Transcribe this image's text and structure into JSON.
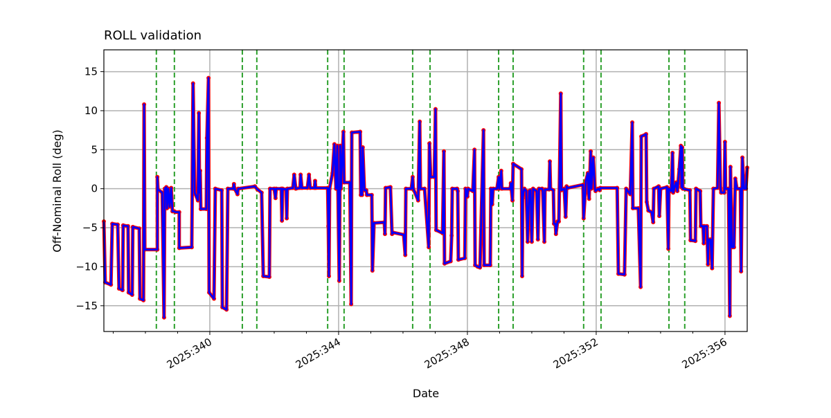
{
  "chart_data": {
    "type": "line",
    "title": "ROLL validation",
    "xlabel": "Date",
    "ylabel": "Off-Nominal Roll (deg)",
    "xlim": [
      336.71,
      356.69
    ],
    "ylim": [
      -18.3,
      17.8
    ],
    "x_major_ticks": [
      340,
      344,
      348,
      352,
      356
    ],
    "x_tick_labels": [
      "2025:340",
      "2025:344",
      "2025:348",
      "2025:352",
      "2025:356"
    ],
    "x_minor_step": 1,
    "y_ticks": [
      -15,
      -10,
      -5,
      0,
      5,
      10,
      15
    ],
    "y_tick_labels": [
      "−15",
      "−10",
      "−5",
      "0",
      "5",
      "10",
      "15"
    ],
    "grid": true,
    "colors": {
      "series_a": "#ff0000",
      "series_b": "#0000ff",
      "markers": "#2ca02c",
      "grid": "#b0b0b0"
    },
    "vertical_markers": [
      338.34,
      338.9,
      341.01,
      341.46,
      343.66,
      344.17,
      346.3,
      346.84,
      348.97,
      349.42,
      351.61,
      352.15,
      354.26,
      354.75
    ],
    "points": [
      [
        336.71,
        -4.2
      ],
      [
        336.75,
        -12
      ],
      [
        336.93,
        -12.3
      ],
      [
        336.97,
        -4.5
      ],
      [
        337.14,
        -4.6
      ],
      [
        337.18,
        -12.8
      ],
      [
        337.29,
        -13
      ],
      [
        337.31,
        -4.7
      ],
      [
        337.46,
        -4.8
      ],
      [
        337.48,
        -13.3
      ],
      [
        337.59,
        -13.6
      ],
      [
        337.61,
        -4.9
      ],
      [
        337.81,
        -5.1
      ],
      [
        337.83,
        -14.1
      ],
      [
        337.94,
        -14.3
      ],
      [
        337.96,
        10.8
      ],
      [
        337.98,
        -7.8
      ],
      [
        338.37,
        -7.8
      ],
      [
        338.37,
        1.5
      ],
      [
        338.39,
        -0.1
      ],
      [
        338.52,
        -0.5
      ],
      [
        338.58,
        -16.5
      ],
      [
        338.6,
        0
      ],
      [
        338.65,
        0.2
      ],
      [
        338.67,
        -2.5
      ],
      [
        338.71,
        0
      ],
      [
        338.75,
        -2.3
      ],
      [
        338.8,
        0.1
      ],
      [
        338.84,
        -2.9
      ],
      [
        338.9,
        -2.9
      ],
      [
        338.93,
        -3
      ],
      [
        339.05,
        -3
      ],
      [
        339.05,
        -7.6
      ],
      [
        339.44,
        -7.5
      ],
      [
        339.48,
        13.5
      ],
      [
        339.53,
        -0.5
      ],
      [
        339.63,
        -1.5
      ],
      [
        339.66,
        9.7
      ],
      [
        339.68,
        -0.5
      ],
      [
        339.7,
        2.3
      ],
      [
        339.72,
        -2.6
      ],
      [
        339.89,
        -2.6
      ],
      [
        339.91,
        6.5
      ],
      [
        339.96,
        14.2
      ],
      [
        339.98,
        -13.3
      ],
      [
        340.13,
        -14.1
      ],
      [
        340.17,
        0
      ],
      [
        340.37,
        -0.2
      ],
      [
        340.39,
        -15.2
      ],
      [
        340.52,
        -15.5
      ],
      [
        340.56,
        0
      ],
      [
        340.73,
        0
      ],
      [
        340.75,
        0.6
      ],
      [
        340.77,
        0
      ],
      [
        340.86,
        -0.7
      ],
      [
        340.88,
        0
      ],
      [
        341.4,
        0.3
      ],
      [
        341.48,
        -0.1
      ],
      [
        341.61,
        -0.5
      ],
      [
        341.66,
        -11.2
      ],
      [
        341.85,
        -11.3
      ],
      [
        341.87,
        0
      ],
      [
        342.0,
        0
      ],
      [
        342.04,
        -1.2
      ],
      [
        342.06,
        0
      ],
      [
        342.22,
        0
      ],
      [
        342.24,
        -4.1
      ],
      [
        342.26,
        0
      ],
      [
        342.37,
        -0.1
      ],
      [
        342.39,
        -3.8
      ],
      [
        342.41,
        0
      ],
      [
        342.58,
        0.1
      ],
      [
        342.62,
        1.8
      ],
      [
        342.67,
        0
      ],
      [
        342.8,
        0.1
      ],
      [
        342.82,
        1.8
      ],
      [
        342.86,
        0.1
      ],
      [
        343.03,
        0.1
      ],
      [
        343.08,
        1.8
      ],
      [
        343.12,
        0.1
      ],
      [
        343.25,
        0.1
      ],
      [
        343.27,
        1
      ],
      [
        343.29,
        0.1
      ],
      [
        343.66,
        0.1
      ],
      [
        343.68,
        -4.8
      ],
      [
        343.7,
        -11.2
      ],
      [
        343.72,
        0
      ],
      [
        343.81,
        2
      ],
      [
        343.87,
        5.7
      ],
      [
        343.92,
        0
      ],
      [
        343.96,
        5.5
      ],
      [
        344.02,
        -11.8
      ],
      [
        344.05,
        5.5
      ],
      [
        344.07,
        0
      ],
      [
        344.15,
        7.3
      ],
      [
        344.17,
        0.8
      ],
      [
        344.35,
        0.8
      ],
      [
        344.39,
        -14.8
      ],
      [
        344.41,
        7.2
      ],
      [
        344.67,
        7.3
      ],
      [
        344.69,
        -0.8
      ],
      [
        344.73,
        -0.8
      ],
      [
        344.75,
        5.3
      ],
      [
        344.8,
        -0.2
      ],
      [
        344.86,
        -0.2
      ],
      [
        344.88,
        -0.8
      ],
      [
        345.03,
        -0.8
      ],
      [
        345.05,
        -10.5
      ],
      [
        345.1,
        -4.4
      ],
      [
        345.42,
        -4.3
      ],
      [
        345.44,
        -5.8
      ],
      [
        345.46,
        0.1
      ],
      [
        345.61,
        0.2
      ],
      [
        345.66,
        -5.8
      ],
      [
        345.68,
        -5.6
      ],
      [
        346.02,
        -5.9
      ],
      [
        346.07,
        -8.5
      ],
      [
        346.09,
        0
      ],
      [
        346.26,
        0
      ],
      [
        346.3,
        1.5
      ],
      [
        346.32,
        0
      ],
      [
        346.47,
        -1.5
      ],
      [
        346.52,
        8.6
      ],
      [
        346.54,
        0
      ],
      [
        346.67,
        0
      ],
      [
        346.8,
        -7.5
      ],
      [
        346.82,
        5.8
      ],
      [
        346.86,
        1.5
      ],
      [
        346.97,
        1.5
      ],
      [
        347.01,
        10.2
      ],
      [
        347.03,
        -5.3
      ],
      [
        347.23,
        -5.7
      ],
      [
        347.27,
        4.8
      ],
      [
        347.29,
        -9.6
      ],
      [
        347.48,
        -9.3
      ],
      [
        347.51,
        -6
      ],
      [
        347.53,
        0
      ],
      [
        347.68,
        0
      ],
      [
        347.7,
        -0.3
      ],
      [
        347.72,
        -9.1
      ],
      [
        347.92,
        -8.9
      ],
      [
        347.94,
        0
      ],
      [
        348.0,
        -1
      ],
      [
        348.02,
        0
      ],
      [
        348.17,
        -0.3
      ],
      [
        348.22,
        5
      ],
      [
        348.24,
        -9.8
      ],
      [
        348.32,
        -10
      ],
      [
        348.39,
        -10.1
      ],
      [
        348.5,
        7.5
      ],
      [
        348.52,
        -9.8
      ],
      [
        348.71,
        -9.8
      ],
      [
        348.73,
        0
      ],
      [
        348.77,
        -2
      ],
      [
        348.8,
        0
      ],
      [
        348.92,
        0
      ],
      [
        348.97,
        1.5
      ],
      [
        348.99,
        0
      ],
      [
        349.05,
        2.3
      ],
      [
        349.07,
        0
      ],
      [
        349.33,
        0
      ],
      [
        349.35,
        0.7
      ],
      [
        349.4,
        -1.5
      ],
      [
        349.42,
        3.2
      ],
      [
        349.68,
        2.5
      ],
      [
        349.7,
        -11.2
      ],
      [
        349.72,
        -1.2
      ],
      [
        349.74,
        -0.5
      ],
      [
        349.77,
        0
      ],
      [
        349.83,
        -0.3
      ],
      [
        349.87,
        -6.8
      ],
      [
        349.92,
        -0.3
      ],
      [
        349.96,
        -0.2
      ],
      [
        350.0,
        -6.8
      ],
      [
        350.04,
        0
      ],
      [
        350.15,
        -0.3
      ],
      [
        350.19,
        -6.5
      ],
      [
        350.22,
        0
      ],
      [
        350.32,
        0
      ],
      [
        350.34,
        -0.2
      ],
      [
        350.39,
        -6.8
      ],
      [
        350.41,
        -0.1
      ],
      [
        350.54,
        -0.1
      ],
      [
        350.56,
        3.5
      ],
      [
        350.58,
        0
      ],
      [
        350.67,
        -0.2
      ],
      [
        350.69,
        -4.5
      ],
      [
        350.73,
        -4.5
      ],
      [
        350.75,
        -5.8
      ],
      [
        350.8,
        -4.2
      ],
      [
        350.84,
        -4.2
      ],
      [
        350.9,
        12.2
      ],
      [
        350.92,
        -0.2
      ],
      [
        351.01,
        0
      ],
      [
        351.05,
        -3.6
      ],
      [
        351.08,
        0.3
      ],
      [
        351.12,
        0.1
      ],
      [
        351.59,
        0.5
      ],
      [
        351.61,
        -3.8
      ],
      [
        351.68,
        1
      ],
      [
        351.74,
        2
      ],
      [
        351.76,
        -0.5
      ],
      [
        351.78,
        -1.3
      ],
      [
        351.83,
        4.8
      ],
      [
        351.85,
        0
      ],
      [
        351.91,
        4
      ],
      [
        351.96,
        0
      ],
      [
        351.98,
        -0.3
      ],
      [
        352.06,
        0
      ],
      [
        352.11,
        -0.2
      ],
      [
        352.13,
        0.1
      ],
      [
        352.65,
        0.1
      ],
      [
        352.69,
        -10.9
      ],
      [
        352.88,
        -11
      ],
      [
        352.93,
        0
      ],
      [
        353.06,
        -0.7
      ],
      [
        353.12,
        8.5
      ],
      [
        353.14,
        -2.5
      ],
      [
        353.31,
        -2.5
      ],
      [
        353.38,
        -12.6
      ],
      [
        353.4,
        6.7
      ],
      [
        353.55,
        7
      ],
      [
        353.57,
        -1.7
      ],
      [
        353.62,
        -2.8
      ],
      [
        353.72,
        -3
      ],
      [
        353.77,
        -4.3
      ],
      [
        353.79,
        0
      ],
      [
        353.94,
        0.3
      ],
      [
        353.96,
        -3.5
      ],
      [
        354.0,
        0
      ],
      [
        354.2,
        0.2
      ],
      [
        354.24,
        -7.7
      ],
      [
        354.26,
        0
      ],
      [
        354.33,
        -0.3
      ],
      [
        354.37,
        4.6
      ],
      [
        354.39,
        -0.5
      ],
      [
        354.48,
        0.8
      ],
      [
        354.52,
        -0.3
      ],
      [
        354.58,
        2.5
      ],
      [
        354.63,
        5.5
      ],
      [
        354.65,
        0.2
      ],
      [
        354.67,
        5.3
      ],
      [
        354.69,
        0
      ],
      [
        354.91,
        -0.2
      ],
      [
        354.93,
        -6.6
      ],
      [
        355.08,
        -6.7
      ],
      [
        355.1,
        0
      ],
      [
        355.23,
        -0.3
      ],
      [
        355.25,
        -4.8
      ],
      [
        355.32,
        -4.8
      ],
      [
        355.34,
        -7
      ],
      [
        355.36,
        -4.8
      ],
      [
        355.44,
        -4.8
      ],
      [
        355.47,
        -9.7
      ],
      [
        355.49,
        -6.5
      ],
      [
        355.55,
        -6.5
      ],
      [
        355.6,
        -10.2
      ],
      [
        355.64,
        0
      ],
      [
        355.77,
        0.1
      ],
      [
        355.81,
        11
      ],
      [
        355.86,
        0.1
      ],
      [
        355.88,
        -0.5
      ],
      [
        355.98,
        -0.5
      ],
      [
        356.0,
        6
      ],
      [
        356.02,
        0
      ],
      [
        356.11,
        0
      ],
      [
        356.15,
        -16.3
      ],
      [
        356.17,
        2.8
      ],
      [
        356.22,
        -7.5
      ],
      [
        356.28,
        -7.5
      ],
      [
        356.32,
        1.3
      ],
      [
        356.37,
        0
      ],
      [
        356.48,
        0
      ],
      [
        356.5,
        -10.6
      ],
      [
        356.54,
        4
      ],
      [
        356.59,
        0
      ],
      [
        356.65,
        0
      ],
      [
        356.69,
        2.7
      ]
    ]
  }
}
